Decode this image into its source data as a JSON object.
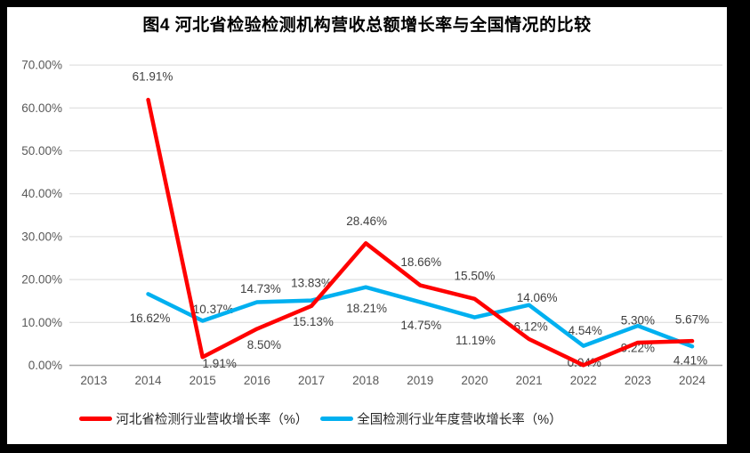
{
  "chart_data": {
    "type": "line",
    "title": "图4 河北省检验检测机构营收总额增长率与全国情况的比较",
    "categories": [
      "2013",
      "2014",
      "2015",
      "2016",
      "2017",
      "2018",
      "2019",
      "2020",
      "2021",
      "2022",
      "2023",
      "2024"
    ],
    "y_axis": {
      "min": 0,
      "max": 70,
      "step": 10,
      "tick_labels": [
        "0.00%",
        "10.00%",
        "20.00%",
        "30.00%",
        "40.00%",
        "50.00%",
        "60.00%",
        "70.00%"
      ]
    },
    "grid": true,
    "legend_position": "bottom",
    "colors": {
      "hebei_line": "#FF0000",
      "national_line": "#00B0F0",
      "gridline": "#D9D9D9",
      "axis_line": "#A6A6A6",
      "tick_text": "#595959",
      "data_label_text": "#404040"
    },
    "series": [
      {
        "name": "河北省检测行业营收增长率（%）",
        "color": "#FF0000",
        "values": [
          null,
          61.91,
          1.91,
          8.5,
          13.83,
          28.46,
          18.66,
          15.5,
          6.12,
          0.04,
          5.3,
          5.67
        ],
        "labels": [
          null,
          "61.91%",
          "1.91%",
          "8.50%",
          "13.83%",
          "28.46%",
          "18.66%",
          "15.50%",
          "6.12%",
          "0.04%",
          "5.30%",
          "5.67%"
        ],
        "label_dx": [
          0,
          5,
          19,
          8,
          0,
          1,
          1,
          0,
          2,
          1,
          0,
          0
        ],
        "label_dy": [
          0,
          -26,
          7,
          18,
          -26,
          -25,
          -26,
          -26,
          -14,
          -3,
          -25,
          -24
        ]
      },
      {
        "name": "全国检测行业年度营收增长率（%）",
        "color": "#00B0F0",
        "values": [
          null,
          16.62,
          10.37,
          14.73,
          15.13,
          18.21,
          14.75,
          11.19,
          14.06,
          4.54,
          9.22,
          4.41
        ],
        "labels": [
          null,
          "16.62%",
          "10.37%",
          "14.73%",
          "15.13%",
          "18.21%",
          "14.75%",
          "11.19%",
          "14.06%",
          "4.54%",
          "9.22%",
          "4.41%"
        ],
        "label_dx": [
          0,
          2,
          12,
          4,
          2,
          1,
          1,
          1,
          9,
          2,
          0,
          -2
        ],
        "label_dy": [
          0,
          27,
          -13,
          -15,
          24,
          24,
          26,
          26,
          -8,
          -17,
          25,
          16
        ]
      }
    ]
  }
}
